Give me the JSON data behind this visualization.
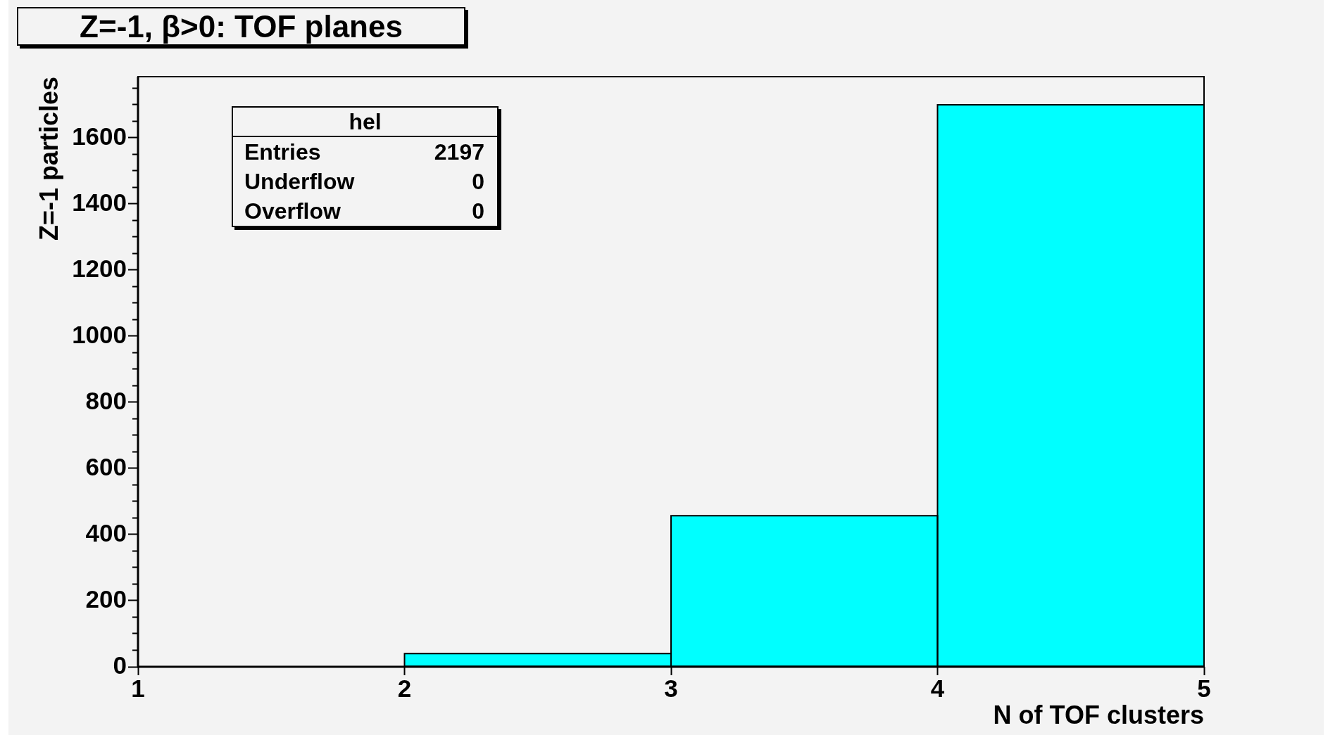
{
  "chart_data": {
    "type": "histogram",
    "title": "Z=-1, β>0: TOF planes",
    "xlabel": "N of TOF clusters",
    "ylabel": "Z=-1 particles",
    "bins": [
      1,
      2,
      3,
      4,
      5
    ],
    "values": [
      0,
      40,
      457,
      1700
    ],
    "color": "#00ffff",
    "xlim": [
      1,
      5
    ],
    "xticks": [
      1,
      2,
      3,
      4,
      5
    ],
    "ylim": [
      0,
      1785
    ],
    "yticks": [
      0,
      {
        "value": 50,
        "label": null
      },
      {
        "value": 100,
        "label": null
      },
      {
        "value": 150,
        "label": null
      },
      200,
      {
        "value": 250,
        "label": null
      },
      {
        "value": 300,
        "label": null
      },
      {
        "value": 350,
        "label": null
      },
      400,
      {
        "value": 450,
        "label": null
      },
      {
        "value": 500,
        "label": null
      },
      {
        "value": 550,
        "label": null
      },
      600,
      {
        "value": 650,
        "label": null
      },
      {
        "value": 700,
        "label": null
      },
      {
        "value": 750,
        "label": null
      },
      800,
      {
        "value": 850,
        "label": null
      },
      {
        "value": 900,
        "label": null
      },
      {
        "value": 950,
        "label": null
      },
      1000,
      {
        "value": 1050,
        "label": null
      },
      {
        "value": 1100,
        "label": null
      },
      {
        "value": 1150,
        "label": null
      },
      1200,
      {
        "value": 1250,
        "label": null
      },
      {
        "value": 1300,
        "label": null
      },
      {
        "value": 1350,
        "label": null
      },
      1400,
      {
        "value": 1450,
        "label": null
      },
      {
        "value": 1500,
        "label": null
      },
      {
        "value": 1550,
        "label": null
      },
      1600,
      {
        "value": 1650,
        "label": null
      },
      {
        "value": 1700,
        "label": null
      },
      {
        "value": 1750,
        "label": null
      }
    ],
    "annotations": [
      "hel",
      "Entries 2197",
      "Underflow 0",
      "Overflow 0"
    ]
  }
}
